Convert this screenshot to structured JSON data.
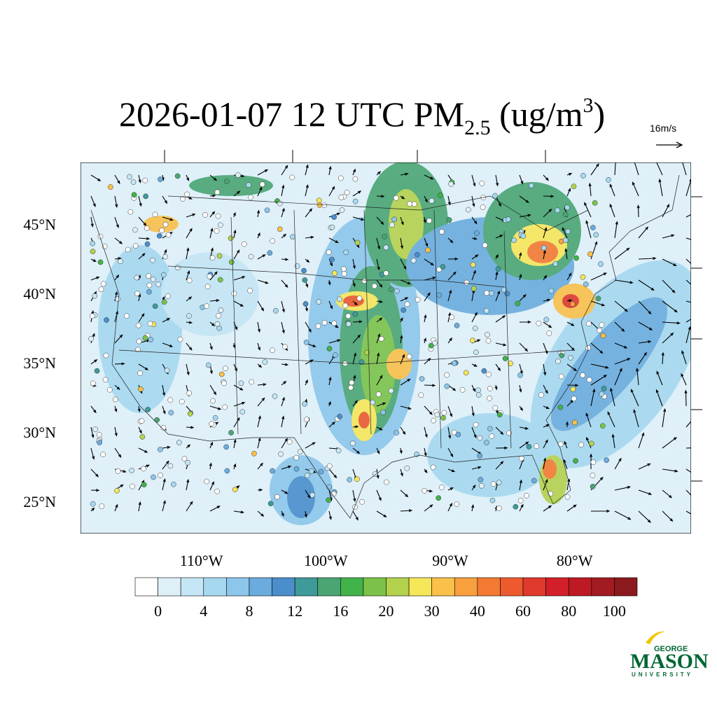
{
  "title": {
    "main": "2026-01-07 12 UTC PM",
    "subscript": "2.5",
    "middle": " (ug/m",
    "superscript": "3",
    "end": ")"
  },
  "wind_scale": "16m/s",
  "map_axes": {
    "lat_labels": [
      {
        "value": 45,
        "label": "45°N"
      },
      {
        "value": 40,
        "label": "40°N"
      },
      {
        "value": 35,
        "label": "35°N"
      },
      {
        "value": 30,
        "label": "30°N"
      },
      {
        "value": 25,
        "label": "25°N"
      }
    ],
    "lon_labels": [
      {
        "value": -110,
        "label": "110°W"
      },
      {
        "value": -100,
        "label": "100°W"
      },
      {
        "value": -90,
        "label": "90°W"
      },
      {
        "value": -80,
        "label": "80°W"
      }
    ]
  },
  "colorbar": {
    "labels": [
      0,
      4,
      8,
      12,
      16,
      20,
      30,
      40,
      60,
      80,
      100
    ],
    "colors": [
      "#ffffff",
      "#deeff8",
      "#c4e6f5",
      "#a6d8f0",
      "#8cc6ea",
      "#6aacdd",
      "#4a8ecb",
      "#3f9a9a",
      "#4aa573",
      "#41b34a",
      "#7cc24a",
      "#b4d14e",
      "#f6e65a",
      "#f9c04a",
      "#f8a03e",
      "#f47a32",
      "#ec5a2e",
      "#df3a2c",
      "#d21f2a",
      "#bd1a25",
      "#a21a22",
      "#8a1a1e"
    ]
  },
  "logo": {
    "top": "GEORGE",
    "main": "MASON",
    "bottom": "UNIVERSITY"
  }
}
